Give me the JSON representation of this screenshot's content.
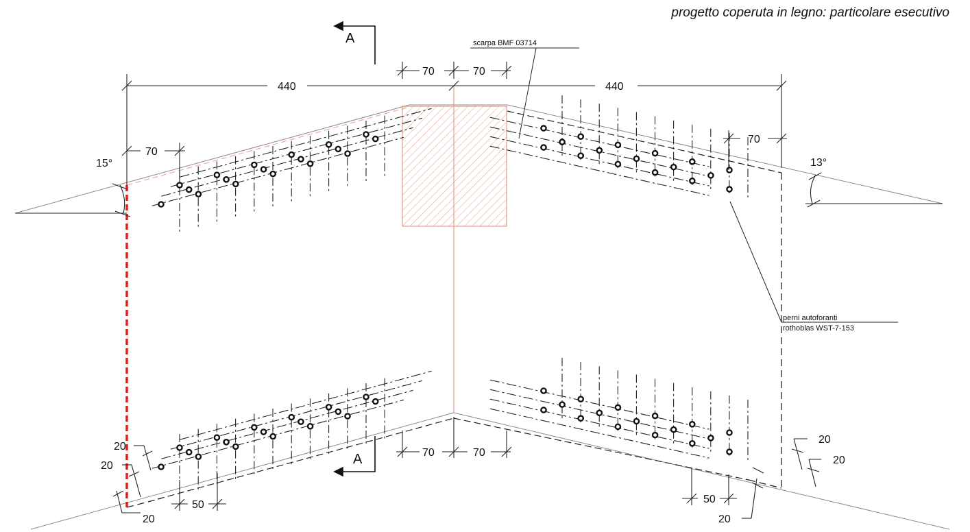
{
  "title": "progetto coperuta in legno: particolare esecutivo",
  "section_mark": "A",
  "callouts": {
    "shoe": "scarpa BMF 03714",
    "pins_line1": "perni autoforanti",
    "pins_line2": "rothoblas WST-7-153"
  },
  "angles": {
    "left": "15°",
    "right": "13°"
  },
  "dimensions": {
    "span_left": "440",
    "span_right": "440",
    "post_left": "70",
    "post_right": "70",
    "edge_left": "70",
    "edge_right": "70",
    "bottom_post_left": "70",
    "bottom_post_right": "70",
    "row_gap_a": "20",
    "row_gap_b": "20",
    "edge_bottom_left": "20",
    "row_gap_c": "20",
    "row_gap_d": "20",
    "edge_bottom_right": "20",
    "pitch_left": "50",
    "pitch_right": "50"
  }
}
